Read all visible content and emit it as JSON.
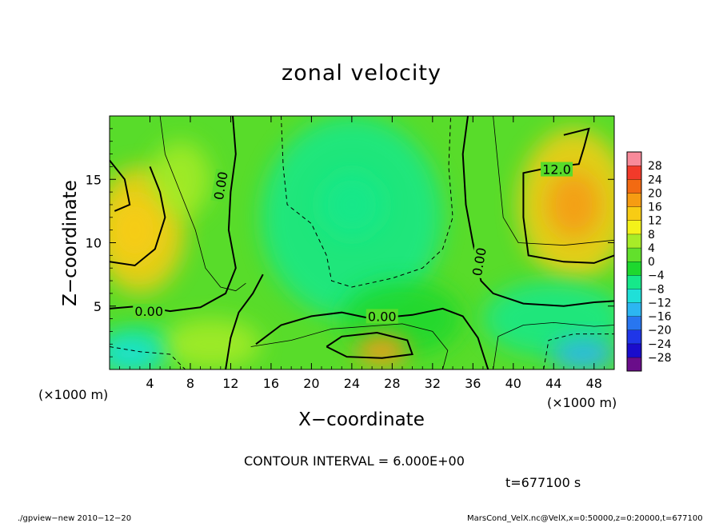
{
  "chart_data": {
    "type": "heatmap",
    "title": "zonal velocity",
    "xlabel": "X−coordinate",
    "ylabel": "Z−coordinate",
    "x_unit": "(×1000 m)",
    "y_unit": "(×1000 m)",
    "xlim": [
      0,
      50
    ],
    "ylim": [
      0,
      20
    ],
    "x_ticks": [
      "4",
      "8",
      "12",
      "16",
      "20",
      "24",
      "28",
      "32",
      "36",
      "40",
      "44",
      "48"
    ],
    "x_tick_values": [
      4,
      8,
      12,
      16,
      20,
      24,
      28,
      32,
      36,
      40,
      44,
      48
    ],
    "y_ticks": [
      "5",
      "10",
      "15"
    ],
    "y_tick_values": [
      5,
      10,
      15
    ],
    "contour_labels": [
      "0.00",
      "0.00",
      "0.00",
      "0.00",
      "12.0"
    ],
    "contour_interval_text": "CONTOUR INTERVAL = 6.000E+00",
    "time_text": "t=677100 s",
    "colorbar": {
      "levels": [
        -28,
        -24,
        -20,
        -16,
        -12,
        -8,
        -4,
        0,
        4,
        8,
        12,
        16,
        20,
        24,
        28
      ],
      "labels": [
        "28",
        "24",
        "20",
        "16",
        "12",
        "8",
        "4",
        "0",
        "−4",
        "−8",
        "−12",
        "−16",
        "−20",
        "−24",
        "−28"
      ],
      "colors": [
        "#6a0d8a",
        "#1a0ccc",
        "#1f36e8",
        "#2876f0",
        "#2cb6f2",
        "#1fe0d8",
        "#16e88a",
        "#1ed82e",
        "#62e02c",
        "#a8ec28",
        "#f4f21a",
        "#f8cc14",
        "#f69c12",
        "#f26a12",
        "#f23a2a",
        "#f88a9a"
      ]
    },
    "regions": [
      {
        "name": "upper-left warm",
        "x": 2.5,
        "z": 11,
        "value": 14
      },
      {
        "name": "right warm",
        "x": 46,
        "z": 13,
        "value": 16
      },
      {
        "name": "central cool",
        "x": 24,
        "z": 13,
        "value": -8
      },
      {
        "name": "low center warm",
        "x": 27,
        "z": 1.5,
        "value": 18
      },
      {
        "name": "lower-right cool",
        "x": 47,
        "z": 1.2,
        "value": -16
      },
      {
        "name": "lower-left cool",
        "x": 2,
        "z": 1.2,
        "value": -12
      }
    ]
  },
  "footer": {
    "left": "./gpview−new   2010−12−20",
    "right": "MarsCond_VelX.nc@VelX,x=0:50000,z=0:20000,t=677100"
  }
}
